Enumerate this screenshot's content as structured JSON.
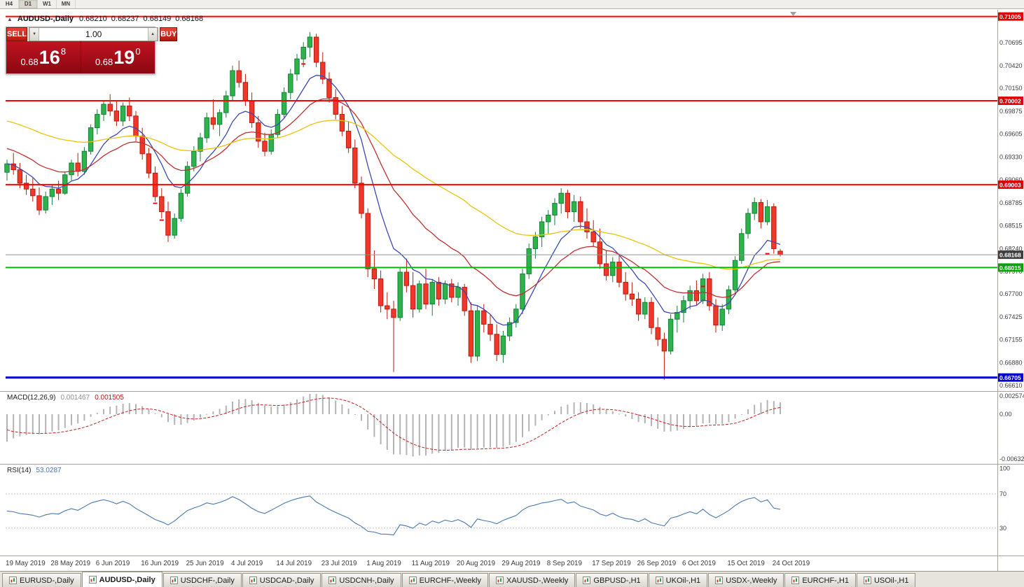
{
  "timeframe_toolbar": {
    "buttons": [
      "H4",
      "D1",
      "W1",
      "MN"
    ],
    "active": "D1"
  },
  "icons": {
    "collapse": "▲",
    "step_down": "▼",
    "step_up": "▲"
  },
  "title_bar": {
    "symbol": "AUDUSD-,Daily",
    "open": "0.68210",
    "high": "0.68237",
    "low": "0.68149",
    "close": "0.68168"
  },
  "trade_panel": {
    "sell_label": "SELL",
    "buy_label": "BUY",
    "volume": "1.00",
    "sell_price": {
      "prefix": "0.68",
      "big": "16",
      "sup": "8"
    },
    "buy_price": {
      "prefix": "0.68",
      "big": "19",
      "sup": "0"
    }
  },
  "price_axis": {
    "labels": [
      "0.70985",
      "0.70695",
      "0.70420",
      "0.70150",
      "0.69875",
      "0.69605",
      "0.69330",
      "0.69060",
      "0.68785",
      "0.68515",
      "0.68240",
      "0.67970",
      "0.67700",
      "0.67425",
      "0.67155",
      "0.66880",
      "0.66610"
    ]
  },
  "time_axis": {
    "labels": [
      "19 May 2019",
      "28 May 2019",
      "6 Jun 2019",
      "16 Jun 2019",
      "25 Jun 2019",
      "4 Jul 2019",
      "14 Jul 2019",
      "23 Jul 2019",
      "1 Aug 2019",
      "11 Aug 2019",
      "20 Aug 2019",
      "29 Aug 2019",
      "8 Sep 2019",
      "17 Sep 2019",
      "26 Sep 2019",
      "6 Oct 2019",
      "15 Oct 2019",
      "24 Oct 2019"
    ]
  },
  "hlines": [
    {
      "price": 0.71005,
      "label": "0.71005",
      "color": "#ff0000",
      "badge": "#dd0000",
      "width": 2
    },
    {
      "price": 0.70002,
      "label": "0.70002",
      "color": "#ff0000",
      "badge": "#dd0000",
      "width": 2
    },
    {
      "price": 0.69003,
      "label": "0.69003",
      "color": "#ff0000",
      "badge": "#dd0000",
      "width": 2
    },
    {
      "price": 0.68015,
      "label": "0.68015",
      "color": "#00bb00",
      "badge": "#00a400",
      "width": 2
    },
    {
      "price": 0.66705,
      "label": "0.66705",
      "color": "#0000cc",
      "badge": "#0000cc",
      "width": 3
    }
  ],
  "current_price": {
    "value": 0.68168,
    "label": "0.68168",
    "line_color": "#909090",
    "badge": "#3f3f3f"
  },
  "markers": [
    {
      "bar": 23,
      "price": 0.6878
    },
    {
      "bar": 24,
      "price": 0.6858
    },
    {
      "bar": 46,
      "price": 0.7044
    },
    {
      "bar": 108,
      "price": 0.6779
    },
    {
      "bar": 118,
      "price": 0.6818
    }
  ],
  "indicators": {
    "macd": {
      "label": "MACD(12,26,9)",
      "value_main": "0.001467",
      "value_signal": "0.001505",
      "histogram_color": "#b4b4b4",
      "signal_color": "#c32222",
      "axis_labels": [
        {
          "text": "0.002574",
          "value": 0.002574
        },
        {
          "text": "0.00",
          "value": 0
        },
        {
          "text": "-0.006326",
          "value": -0.006326
        }
      ]
    },
    "rsi": {
      "label": "RSI(14)",
      "value": "53.0287",
      "line_color": "#4878b0",
      "levels": [
        70,
        30
      ],
      "axis_labels": [
        {
          "text": "100",
          "value": 100
        },
        {
          "text": "70",
          "value": 70
        },
        {
          "text": "30",
          "value": 30
        }
      ]
    }
  },
  "colors": {
    "bull": "#2eb24a",
    "bull_border": "#15803a",
    "bear": "#ef372a",
    "bear_border": "#bb1a0e"
  },
  "chart_data": {
    "type": "candlestick",
    "title": "AUDUSD-,Daily",
    "timeframe": "Daily",
    "bars_per_x_label": 7,
    "x_labels": [
      "19 May 2019",
      "28 May 2019",
      "6 Jun 2019",
      "16 Jun 2019",
      "25 Jun 2019",
      "4 Jul 2019",
      "14 Jul 2019",
      "23 Jul 2019",
      "1 Aug 2019",
      "11 Aug 2019",
      "20 Aug 2019",
      "29 Aug 2019",
      "8 Sep 2019",
      "17 Sep 2019",
      "26 Sep 2019",
      "6 Oct 2019",
      "15 Oct 2019",
      "24 Oct 2019"
    ],
    "y_range": [
      0.6651,
      0.7108
    ],
    "candles": [
      [
        0.6915,
        0.693,
        0.6905,
        0.6925
      ],
      [
        0.6925,
        0.6938,
        0.6912,
        0.6918
      ],
      [
        0.6918,
        0.6926,
        0.6896,
        0.6902
      ],
      [
        0.6902,
        0.6912,
        0.6888,
        0.6895
      ],
      [
        0.6895,
        0.6908,
        0.688,
        0.6887
      ],
      [
        0.6887,
        0.6897,
        0.6864,
        0.687
      ],
      [
        0.687,
        0.6892,
        0.6866,
        0.6886
      ],
      [
        0.6886,
        0.69,
        0.6876,
        0.6895
      ],
      [
        0.6895,
        0.6905,
        0.6882,
        0.689
      ],
      [
        0.689,
        0.6916,
        0.6888,
        0.6912
      ],
      [
        0.6912,
        0.693,
        0.6905,
        0.6926
      ],
      [
        0.6926,
        0.6938,
        0.691,
        0.6916
      ],
      [
        0.6916,
        0.6945,
        0.6912,
        0.694
      ],
      [
        0.694,
        0.6972,
        0.6936,
        0.6968
      ],
      [
        0.6968,
        0.699,
        0.696,
        0.6984
      ],
      [
        0.6984,
        0.7,
        0.6976,
        0.6996
      ],
      [
        0.6996,
        0.7008,
        0.6982,
        0.6988
      ],
      [
        0.6988,
        0.7,
        0.697,
        0.6976
      ],
      [
        0.6976,
        0.6998,
        0.697,
        0.6994
      ],
      [
        0.6994,
        0.7004,
        0.6976,
        0.6982
      ],
      [
        0.6982,
        0.6988,
        0.6952,
        0.6958
      ],
      [
        0.6958,
        0.6968,
        0.693,
        0.6937
      ],
      [
        0.6937,
        0.6944,
        0.6908,
        0.6914
      ],
      [
        0.6914,
        0.6922,
        0.688,
        0.6886
      ],
      [
        0.6886,
        0.6896,
        0.686,
        0.6868
      ],
      [
        0.6868,
        0.688,
        0.6832,
        0.684
      ],
      [
        0.684,
        0.6866,
        0.6836,
        0.686
      ],
      [
        0.686,
        0.6895,
        0.6856,
        0.689
      ],
      [
        0.689,
        0.6928,
        0.6886,
        0.6922
      ],
      [
        0.6922,
        0.6946,
        0.6916,
        0.694
      ],
      [
        0.694,
        0.6962,
        0.6928,
        0.6956
      ],
      [
        0.6956,
        0.6986,
        0.695,
        0.698
      ],
      [
        0.698,
        0.7002,
        0.6966,
        0.6972
      ],
      [
        0.6972,
        0.699,
        0.6958,
        0.6986
      ],
      [
        0.6986,
        0.7012,
        0.698,
        0.7006
      ],
      [
        0.7006,
        0.7042,
        0.7,
        0.7036
      ],
      [
        0.7036,
        0.7048,
        0.7016,
        0.7022
      ],
      [
        0.7022,
        0.7032,
        0.6994,
        0.7
      ],
      [
        0.7,
        0.701,
        0.6968,
        0.6974
      ],
      [
        0.6974,
        0.6982,
        0.6944,
        0.6952
      ],
      [
        0.6952,
        0.6962,
        0.6934,
        0.694
      ],
      [
        0.694,
        0.6966,
        0.6936,
        0.696
      ],
      [
        0.696,
        0.699,
        0.6956,
        0.6984
      ],
      [
        0.6984,
        0.7016,
        0.698,
        0.701
      ],
      [
        0.701,
        0.7038,
        0.7002,
        0.7032
      ],
      [
        0.7032,
        0.7056,
        0.7024,
        0.705
      ],
      [
        0.705,
        0.707,
        0.704,
        0.7064
      ],
      [
        0.7064,
        0.7082,
        0.7052,
        0.7076
      ],
      [
        0.7076,
        0.708,
        0.704,
        0.7046
      ],
      [
        0.7046,
        0.7058,
        0.702,
        0.7026
      ],
      [
        0.7026,
        0.7034,
        0.6998,
        0.7004
      ],
      [
        0.7004,
        0.7014,
        0.6978,
        0.6984
      ],
      [
        0.6984,
        0.6994,
        0.6958,
        0.6964
      ],
      [
        0.6964,
        0.6976,
        0.6938,
        0.6944
      ],
      [
        0.6944,
        0.6954,
        0.6896,
        0.6902
      ],
      [
        0.6902,
        0.691,
        0.686,
        0.6866
      ],
      [
        0.6866,
        0.6872,
        0.679,
        0.68
      ],
      [
        0.68,
        0.6822,
        0.6776,
        0.6788
      ],
      [
        0.6788,
        0.6798,
        0.6748,
        0.6756
      ],
      [
        0.6756,
        0.6772,
        0.674,
        0.6752
      ],
      [
        0.6752,
        0.6762,
        0.6677,
        0.6742
      ],
      [
        0.6742,
        0.6802,
        0.6738,
        0.6796
      ],
      [
        0.6796,
        0.6812,
        0.6772,
        0.678
      ],
      [
        0.678,
        0.6796,
        0.6742,
        0.6752
      ],
      [
        0.6752,
        0.6786,
        0.6748,
        0.6782
      ],
      [
        0.6782,
        0.68,
        0.6752,
        0.6758
      ],
      [
        0.6758,
        0.6788,
        0.6744,
        0.6784
      ],
      [
        0.6784,
        0.679,
        0.6756,
        0.6764
      ],
      [
        0.6764,
        0.6786,
        0.6758,
        0.6782
      ],
      [
        0.6782,
        0.6788,
        0.676,
        0.6766
      ],
      [
        0.6766,
        0.6784,
        0.6756,
        0.6778
      ],
      [
        0.6778,
        0.6782,
        0.6744,
        0.675
      ],
      [
        0.675,
        0.676,
        0.6688,
        0.6696
      ],
      [
        0.6696,
        0.6756,
        0.669,
        0.675
      ],
      [
        0.675,
        0.6758,
        0.6724,
        0.6734
      ],
      [
        0.6734,
        0.6746,
        0.6714,
        0.6722
      ],
      [
        0.6722,
        0.6734,
        0.669,
        0.6698
      ],
      [
        0.6698,
        0.6726,
        0.6688,
        0.672
      ],
      [
        0.672,
        0.6742,
        0.6714,
        0.6736
      ],
      [
        0.6736,
        0.6758,
        0.673,
        0.6752
      ],
      [
        0.6752,
        0.68,
        0.6746,
        0.6794
      ],
      [
        0.6794,
        0.683,
        0.6788,
        0.6824
      ],
      [
        0.6824,
        0.6844,
        0.6812,
        0.6838
      ],
      [
        0.6838,
        0.6862,
        0.6826,
        0.6856
      ],
      [
        0.6856,
        0.687,
        0.6842,
        0.6864
      ],
      [
        0.6864,
        0.6884,
        0.6852,
        0.6878
      ],
      [
        0.6878,
        0.6896,
        0.6866,
        0.689
      ],
      [
        0.689,
        0.6894,
        0.686,
        0.6868
      ],
      [
        0.6868,
        0.6888,
        0.6856,
        0.688
      ],
      [
        0.688,
        0.6886,
        0.6848,
        0.6856
      ],
      [
        0.6856,
        0.6872,
        0.6836,
        0.6844
      ],
      [
        0.6844,
        0.6858,
        0.6826,
        0.6832
      ],
      [
        0.6832,
        0.6848,
        0.68,
        0.6806
      ],
      [
        0.6806,
        0.6822,
        0.6786,
        0.6792
      ],
      [
        0.6792,
        0.6814,
        0.6784,
        0.6808
      ],
      [
        0.6808,
        0.6816,
        0.6778,
        0.6784
      ],
      [
        0.6784,
        0.6796,
        0.6762,
        0.677
      ],
      [
        0.677,
        0.6784,
        0.6756,
        0.6764
      ],
      [
        0.6764,
        0.6772,
        0.6738,
        0.6746
      ],
      [
        0.6746,
        0.6766,
        0.674,
        0.676
      ],
      [
        0.676,
        0.6766,
        0.6722,
        0.673
      ],
      [
        0.673,
        0.6742,
        0.6708,
        0.6716
      ],
      [
        0.6716,
        0.6724,
        0.6668,
        0.6702
      ],
      [
        0.6702,
        0.6746,
        0.6698,
        0.674
      ],
      [
        0.674,
        0.6756,
        0.6724,
        0.6748
      ],
      [
        0.6748,
        0.6768,
        0.6736,
        0.6762
      ],
      [
        0.6762,
        0.678,
        0.6752,
        0.6774
      ],
      [
        0.6774,
        0.6786,
        0.6756,
        0.6762
      ],
      [
        0.6762,
        0.6794,
        0.6758,
        0.6788
      ],
      [
        0.6788,
        0.6796,
        0.675,
        0.6756
      ],
      [
        0.6756,
        0.6764,
        0.6724,
        0.6733
      ],
      [
        0.6733,
        0.6758,
        0.6726,
        0.6752
      ],
      [
        0.6752,
        0.678,
        0.6746,
        0.6775
      ],
      [
        0.6775,
        0.6815,
        0.677,
        0.681
      ],
      [
        0.681,
        0.6848,
        0.6806,
        0.6842
      ],
      [
        0.6842,
        0.6872,
        0.6836,
        0.6866
      ],
      [
        0.6866,
        0.6885,
        0.6858,
        0.6879
      ],
      [
        0.6879,
        0.6883,
        0.6848,
        0.6856
      ],
      [
        0.6856,
        0.6882,
        0.6852,
        0.6874
      ],
      [
        0.6874,
        0.6878,
        0.6818,
        0.6824
      ],
      [
        0.6821,
        0.68237,
        0.68149,
        0.68168
      ]
    ],
    "moving_averages": [
      {
        "name": "fast",
        "period": 9,
        "seed": 0.6925,
        "color": "#3a49b4"
      },
      {
        "name": "medium",
        "period": 21,
        "seed": 0.6945,
        "color": "#c03030"
      },
      {
        "name": "slow",
        "period": 55,
        "seed": 0.6978,
        "color": "#e8c40c"
      }
    ],
    "macd_params": {
      "fast": 12,
      "slow": 26,
      "signal": 9,
      "seed_fast": 0.689,
      "seed_slow": 0.6935,
      "seed_signal": -0.0018
    },
    "rsi_period": 14
  },
  "bottom_tabs": {
    "active_index": 1,
    "items": [
      {
        "label": "EURUSD-,Daily"
      },
      {
        "label": "AUDUSD-,Daily"
      },
      {
        "label": "USDCHF-,Daily"
      },
      {
        "label": "USDCAD-,Daily"
      },
      {
        "label": "USDCNH-,Daily"
      },
      {
        "label": "EURCHF-,Weekly"
      },
      {
        "label": "XAUUSD-,Weekly"
      },
      {
        "label": "GBPUSD-,H1"
      },
      {
        "label": "UKOil-,H1"
      },
      {
        "label": "USDX-,Weekly"
      },
      {
        "label": "EURCHF-,H1"
      },
      {
        "label": "USOil-,H1"
      }
    ]
  }
}
